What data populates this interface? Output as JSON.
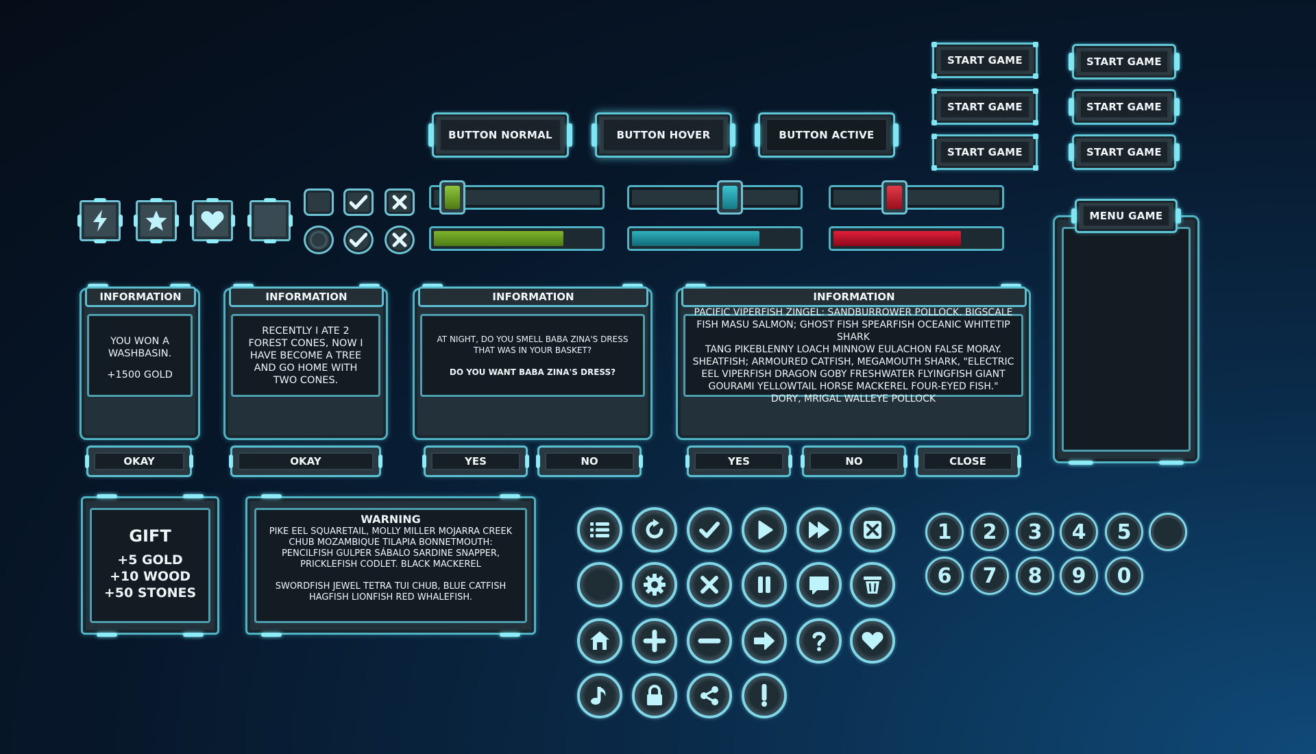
{
  "colors": {
    "accent": "#5fc8d8",
    "green": "#6ea82a",
    "teal": "#1e9aa8",
    "red": "#c0182c",
    "icon": "#bff3fb"
  },
  "start_buttons": [
    "START GAME",
    "START GAME",
    "START GAME",
    "START GAME",
    "START GAME",
    "START GAME"
  ],
  "state_buttons": {
    "normal": "BUTTON NORMAL",
    "hover": "BUTTON HOVER",
    "active": "BUTTON ACTIVE"
  },
  "menu_panel": {
    "title": "MENU GAME"
  },
  "square_icons": [
    "lightning-icon",
    "star-icon",
    "heart-icon",
    "empty-icon"
  ],
  "checkboxes": [
    "empty",
    "check",
    "x",
    "empty",
    "check",
    "x"
  ],
  "sliders": [
    {
      "color": "green",
      "value": 0.05
    },
    {
      "color": "teal",
      "value": 0.58
    },
    {
      "color": "red",
      "value": 0.36
    }
  ],
  "progress_bars": [
    {
      "color": "green",
      "value": 0.78
    },
    {
      "color": "teal",
      "value": 0.77
    },
    {
      "color": "red",
      "value": 0.77
    }
  ],
  "dialogs": [
    {
      "title": "INFORMATION",
      "lines": [
        "YOU WON A WASHBASIN.",
        "",
        "",
        "+1500 GOLD"
      ],
      "buttons": [
        "OKAY"
      ]
    },
    {
      "title": "INFORMATION",
      "lines": [
        "RECENTLY I ATE 2 FOREST CONES, NOW I HAVE BECOME A TREE AND GO HOME WITH TWO CONES."
      ],
      "buttons": [
        "OKAY"
      ]
    },
    {
      "title": "INFORMATION",
      "lines": [
        "AT NIGHT, DO YOU SMELL BABA ZINA'S DRESS THAT WAS IN YOUR BASKET?",
        "DO YOU WANT BABA ZINA'S DRESS?"
      ],
      "buttons": [
        "YES",
        "NO"
      ]
    },
    {
      "title": "INFORMATION",
      "lines": [
        "PACIFIC VIPERFISH ZINGEL: SANDBURROWER POLLOCK. BIGSCALE FISH MASU SALMON; GHOST FISH SPEARFISH OCEANIC WHITETIP SHARK",
        "TANG PIKEBLENNY LOACH MINNOW EULACHON FALSE MORAY. SHEATFISH; ARMOURED CATFISH, MEGAMOUTH SHARK, \"ELECTRIC EEL VIPERFISH DRAGON GOBY FRESHWATER FLYINGFISH GIANT GOURAMI YELLOWTAIL HORSE MACKEREL FOUR-EYED FISH.\" DORY, MRIGAL WALLEYE POLLOCK"
      ],
      "buttons": [
        "YES",
        "NO",
        "CLOSE"
      ]
    }
  ],
  "gift": {
    "title": "GIFT",
    "lines": [
      "+5 GOLD",
      "+10 WOOD",
      "+50 STONES"
    ]
  },
  "warning": {
    "title": "WARNING",
    "para1": "PIKE EEL SQUARETAIL, MOLLY MILLER MOJARRA CREEK CHUB MOZAMBIQUE TILAPIA BONNETMOUTH: PENCILFISH GULPER SÁBALO SARDINE SNAPPER, PRICKLEFISH CODLET. BLACK MACKEREL",
    "para2": "SWORDFISH JEWEL TETRA TUI CHUB, BLUE CATFISH HAGFISH LIONFISH RED WHALEFISH."
  },
  "round_icons": [
    "list-icon",
    "refresh-icon",
    "check-icon",
    "play-icon",
    "fast-forward-icon",
    "close-box-icon",
    "blank-icon",
    "gear-icon",
    "x-icon",
    "pause-icon",
    "chat-icon",
    "trash-icon",
    "home-icon",
    "plus-icon",
    "minus-icon",
    "arrow-right-icon",
    "question-icon",
    "heart-icon",
    "music-note-icon",
    "lock-icon",
    "share-icon",
    "exclamation-icon"
  ],
  "number_buttons": [
    "1",
    "2",
    "3",
    "4",
    "5",
    "",
    "6",
    "7",
    "8",
    "9",
    "0"
  ]
}
